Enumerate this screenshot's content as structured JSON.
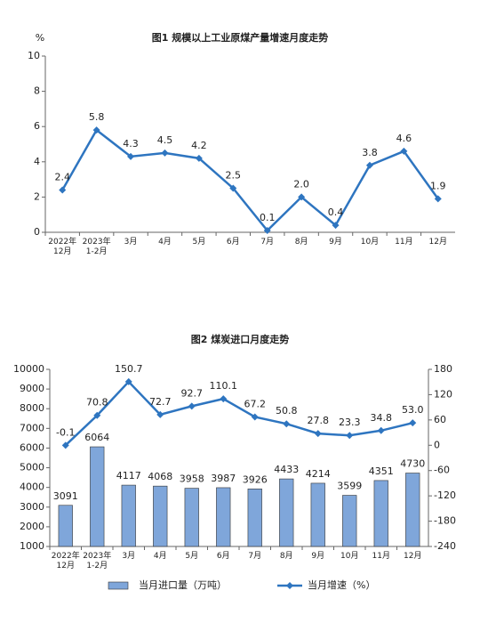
{
  "chart_data": [
    {
      "type": "line",
      "title": "图1  规模以上工业原煤产量增速月度走势",
      "y_unit": "%",
      "categories": [
        "2022年\n12月",
        "2023年\n1-2月",
        "3月",
        "4月",
        "5月",
        "6月",
        "7月",
        "8月",
        "9月",
        "10月",
        "11月",
        "12月"
      ],
      "values": [
        2.4,
        5.8,
        4.3,
        4.5,
        4.2,
        2.5,
        0.1,
        2.0,
        0.4,
        3.8,
        4.6,
        1.9
      ],
      "value_labels": [
        "2.4",
        "5.8",
        "4.3",
        "4.5",
        "4.2",
        "2.5",
        "0.1",
        "2.0",
        "0.4",
        "3.8",
        "4.6",
        "1.9"
      ],
      "color": "#2e75c0",
      "ylim": [
        0,
        10
      ],
      "yticks": [
        0,
        2,
        4,
        6,
        8,
        10
      ]
    },
    {
      "type": "bar",
      "title": "图2  煤炭进口月度走势",
      "categories": [
        "2022年\n12月",
        "2023年\n1-2月",
        "3月",
        "4月",
        "5月",
        "6月",
        "7月",
        "8月",
        "9月",
        "10月",
        "11月",
        "12月"
      ],
      "series": [
        {
          "name": "当月进口量（万吨）",
          "type": "bar",
          "color": "#7fa6da",
          "values": [
            3091,
            6064,
            4117,
            4068,
            3958,
            3987,
            3926,
            4433,
            4214,
            3599,
            4351,
            4730
          ]
        },
        {
          "name": "当月增速（%）",
          "type": "line",
          "axis": "y2",
          "color": "#2e75c0",
          "values": [
            -0.1,
            70.8,
            150.7,
            72.7,
            92.7,
            110.1,
            67.2,
            50.8,
            27.8,
            23.3,
            34.8,
            53.0
          ],
          "value_labels": [
            "-0.1",
            "70.8",
            "150.7",
            "72.7",
            "92.7",
            "110.1",
            "67.2",
            "50.8",
            "27.8",
            "23.3",
            "34.8",
            "53.0"
          ]
        }
      ],
      "ylim": [
        1000,
        10000
      ],
      "yticks": [
        1000,
        2000,
        3000,
        4000,
        5000,
        6000,
        7000,
        8000,
        9000,
        10000
      ],
      "y2lim": [
        -240,
        180
      ],
      "y2ticks": [
        -240,
        -180,
        -120,
        -60,
        0,
        60,
        120,
        180
      ]
    }
  ]
}
